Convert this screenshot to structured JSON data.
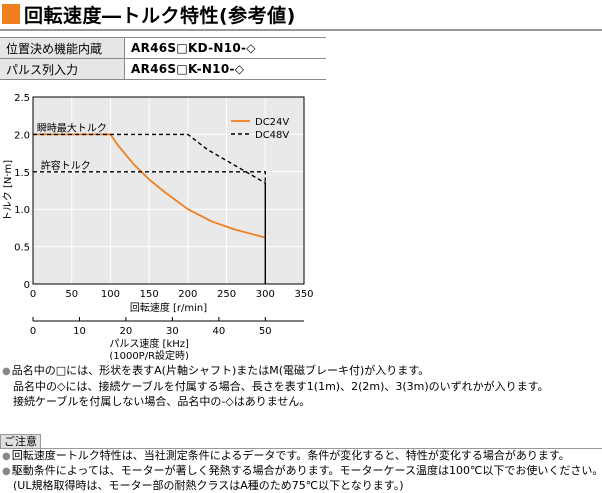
{
  "title": "回転速度―トルク特性(参考値)",
  "specs": [
    {
      "label": "位置決め機能内蔵",
      "value": "AR46S□KD-N10-◇"
    },
    {
      "label": "パルス列入力",
      "value": "AR46S□K-N10-◇"
    }
  ],
  "chart_data": {
    "type": "line",
    "xlabel": "回転速度 [r/min]",
    "ylabel": "トルク [N·m]",
    "xlim": [
      0,
      350
    ],
    "ylim": [
      0,
      2.5
    ],
    "x_ticks": [
      "0",
      "50",
      "100",
      "150",
      "200",
      "250",
      "300",
      "350"
    ],
    "y_ticks": [
      "0",
      "0.5",
      "1.0",
      "1.5",
      "2.0",
      "2.5"
    ],
    "secondary_axis": {
      "label": "パルス速度 [kHz]",
      "sublabel": "(1000P/R設定時)",
      "ticks": [
        "0",
        "10",
        "20",
        "30",
        "40",
        "50"
      ],
      "tick_values": [
        0,
        10,
        20,
        30,
        40,
        50
      ],
      "scale_to_primary": 6
    },
    "grid": true,
    "legend_position": "top-right",
    "series": [
      {
        "name": "DC24V",
        "style": "solid",
        "color": "#f07f1e",
        "x": [
          0,
          100,
          110,
          130,
          150,
          170,
          200,
          230,
          260,
          300
        ],
        "y": [
          2.0,
          2.0,
          1.85,
          1.6,
          1.4,
          1.23,
          1.0,
          0.84,
          0.73,
          0.62
        ]
      },
      {
        "name": "DC48V",
        "style": "dashed",
        "color": "#000000",
        "x": [
          0,
          200,
          225,
          250,
          275,
          300,
          300
        ],
        "y": [
          2.0,
          2.0,
          1.8,
          1.65,
          1.5,
          1.35,
          0
        ]
      },
      {
        "name": "",
        "style": "dashed",
        "color": "#000000",
        "x": [
          0,
          300,
          300
        ],
        "y": [
          1.5,
          1.5,
          0
        ]
      }
    ],
    "annotations": [
      {
        "text": "瞬時最大トルク",
        "x": 5,
        "y": 2.04
      },
      {
        "text": "許容トルク",
        "x": 10,
        "y": 1.54
      }
    ]
  },
  "notes": [
    {
      "bullet": "●",
      "text": "品名中の□には、形状を表すA(片軸シャフト)またはM(電磁ブレーキ付)が入ります。"
    },
    {
      "bullet": "",
      "text": "品名中の◇には、接続ケーブルを付属する場合、長さを表す1(1m)、2(2m)、3(3m)のいずれかが入ります。"
    },
    {
      "bullet": "",
      "text": "接続ケーブルを付属しない場合、品名中の-◇はありません。"
    }
  ],
  "caution": {
    "label": "ご注意",
    "items": [
      {
        "bullet": "●",
        "text": "回転速度ートルク特性は、当社測定条件によるデータです。条件が変化すると、特性が変化する場合があります。"
      },
      {
        "bullet": "●",
        "text": "駆動条件によっては、モーターが著しく発熱する場合があります。モーターケース温度は100℃以下でお使いください。"
      },
      {
        "bullet": "",
        "text": "(UL規格取得時は、モーター部の耐熱クラスはA種のため75℃以下となります。)"
      }
    ]
  }
}
